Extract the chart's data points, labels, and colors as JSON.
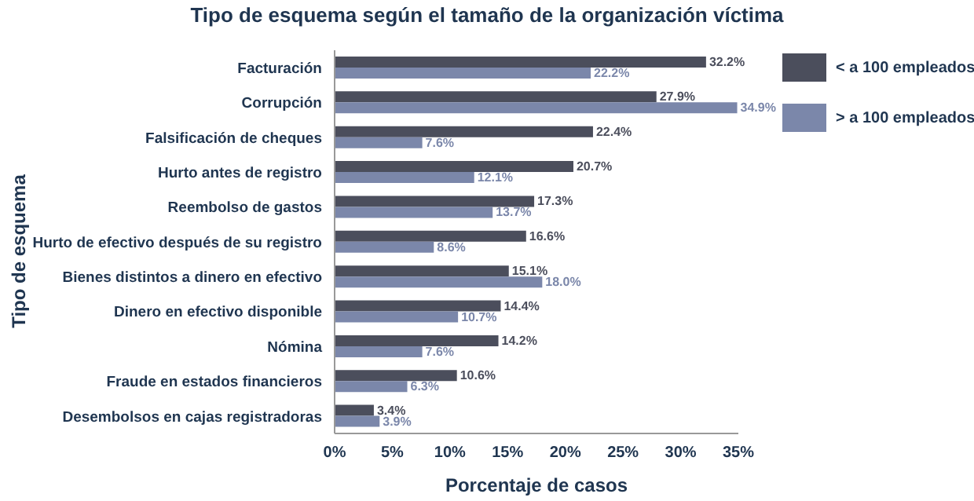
{
  "chart_data": {
    "type": "bar",
    "orientation": "horizontal",
    "title": "Tipo de esquema según el tamaño de la organización víctima",
    "xlabel": "Porcentaje de casos",
    "ylabel": "Tipo de esquema",
    "categories": [
      "Facturación",
      "Corrupción",
      "Falsificación de cheques",
      "Hurto antes de registro",
      "Reembolso de gastos",
      "Hurto de efectivo después de su registro",
      "Bienes distintos a dinero en efectivo",
      "Dinero en efectivo disponible",
      "Nómina",
      "Fraude en estados financieros",
      "Desembolsos en cajas registradoras"
    ],
    "series": [
      {
        "name": "< a 100 empleados",
        "color": "#4b4e5c",
        "values": [
          32.2,
          27.9,
          22.4,
          20.7,
          17.3,
          16.6,
          15.1,
          14.4,
          14.2,
          10.6,
          3.4
        ],
        "value_labels": [
          "32.2%",
          "27.9%",
          "22.4%",
          "20.7%",
          "17.3%",
          "16.6%",
          "15.1%",
          "14.4%",
          "14.2%",
          "10.6%",
          "3.4%"
        ]
      },
      {
        "name": "> a 100 empleados",
        "color": "#7b87aa",
        "values": [
          22.2,
          34.9,
          7.6,
          12.1,
          13.7,
          8.6,
          18.0,
          10.7,
          7.6,
          6.3,
          3.9
        ],
        "value_labels": [
          "22.2%",
          "34.9%",
          "7.6%",
          "12.1%",
          "13.7%",
          "8.6%",
          "18.0%",
          "10.7%",
          "7.6%",
          "6.3%",
          "3.9%"
        ]
      }
    ],
    "xlim": [
      0,
      35
    ],
    "xticks": [
      {
        "value": 0,
        "label": "0%"
      },
      {
        "value": 5,
        "label": "5%"
      },
      {
        "value": 10,
        "label": "10%"
      },
      {
        "value": 15,
        "label": "15%"
      },
      {
        "value": 20,
        "label": "20%"
      },
      {
        "value": 25,
        "label": "25%"
      },
      {
        "value": 30,
        "label": "30%"
      },
      {
        "value": 35,
        "label": "35%"
      }
    ],
    "grid": false,
    "legend": "top right"
  }
}
